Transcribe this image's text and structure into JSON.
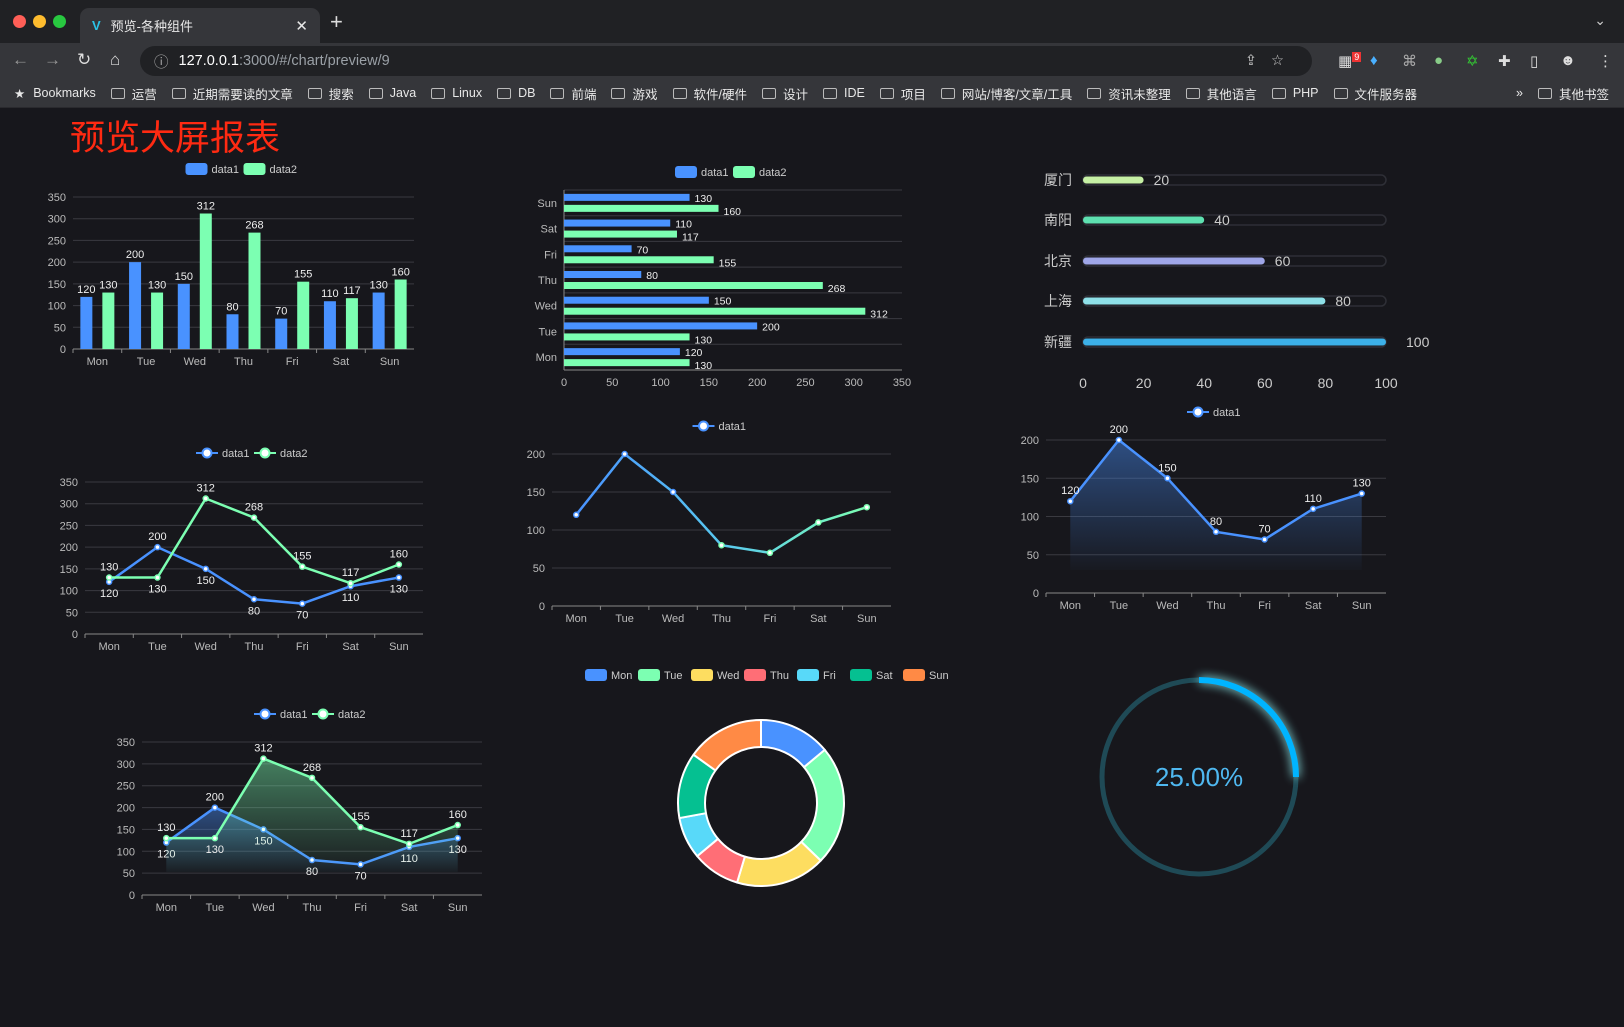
{
  "browser": {
    "tab_title": "预览-各种组件",
    "url_host": "127.0.0.1",
    "url_rest": ":3000/#/chart/preview/9",
    "ext_badge": "9",
    "bookmarks": [
      "Bookmarks",
      "运营",
      "近期需要读的文章",
      "搜索",
      "Java",
      "Linux",
      "DB",
      "前端",
      "游戏",
      "软件/硬件",
      "设计",
      "IDE",
      "项目",
      "网站/博客/文章/工具",
      "资讯未整理",
      "其他语言",
      "PHP",
      "文件服务器",
      "»",
      "其他书签"
    ]
  },
  "page": {
    "title": "预览大屏报表"
  },
  "colors": {
    "data1": "#4992ff",
    "data2": "#7cffb2",
    "pie": [
      "#4992ff",
      "#7cffb2",
      "#fddd60",
      "#ff6e76",
      "#58d9f9",
      "#05c091",
      "#ff8a45"
    ],
    "progress": [
      "#c6f0a4",
      "#5ee0b0",
      "#9fa6e8",
      "#8ee0e8",
      "#3cb0e8"
    ],
    "gauge": "#00b4ff",
    "gauge_track": "#1f4a56"
  },
  "chart_data": [
    {
      "type": "bar",
      "categories": [
        "Mon",
        "Tue",
        "Wed",
        "Thu",
        "Fri",
        "Sat",
        "Sun"
      ],
      "series": [
        {
          "name": "data1",
          "values": [
            120,
            200,
            150,
            80,
            70,
            110,
            130
          ]
        },
        {
          "name": "data2",
          "values": [
            130,
            130,
            312,
            268,
            155,
            117,
            160
          ]
        }
      ],
      "ylim": [
        0,
        350
      ],
      "yticks": [
        0,
        50,
        100,
        150,
        200,
        250,
        300,
        350
      ],
      "legend": "top",
      "grid": true
    },
    {
      "type": "bar",
      "orientation": "horizontal",
      "categories": [
        "Mon",
        "Tue",
        "Wed",
        "Thu",
        "Fri",
        "Sat",
        "Sun"
      ],
      "series": [
        {
          "name": "data1",
          "values": [
            120,
            200,
            150,
            80,
            70,
            110,
            130
          ]
        },
        {
          "name": "data2",
          "values": [
            130,
            130,
            312,
            268,
            155,
            117,
            160
          ]
        }
      ],
      "xlim": [
        0,
        350
      ],
      "xticks": [
        0,
        50,
        100,
        150,
        200,
        250,
        300,
        350
      ],
      "legend": "top",
      "grid": true
    },
    {
      "type": "bar",
      "orientation": "horizontal",
      "style": "progress",
      "categories": [
        "厦门",
        "南阳",
        "北京",
        "上海",
        "新疆"
      ],
      "values": [
        20,
        40,
        60,
        80,
        100
      ],
      "xlim": [
        0,
        100
      ],
      "xticks": [
        0,
        20,
        40,
        60,
        80,
        100
      ]
    },
    {
      "type": "line",
      "categories": [
        "Mon",
        "Tue",
        "Wed",
        "Thu",
        "Fri",
        "Sat",
        "Sun"
      ],
      "series": [
        {
          "name": "data1",
          "values": [
            120,
            200,
            150,
            80,
            70,
            110,
            130
          ]
        },
        {
          "name": "data2",
          "values": [
            130,
            130,
            312,
            268,
            155,
            117,
            160
          ]
        }
      ],
      "ylim": [
        0,
        350
      ],
      "yticks": [
        0,
        50,
        100,
        150,
        200,
        250,
        300,
        350
      ],
      "legend": "top",
      "grid": true
    },
    {
      "type": "line",
      "categories": [
        "Mon",
        "Tue",
        "Wed",
        "Thu",
        "Fri",
        "Sat",
        "Sun"
      ],
      "series": [
        {
          "name": "data1",
          "values": [
            120,
            200,
            150,
            80,
            70,
            110,
            130
          ]
        }
      ],
      "ylim": [
        0,
        200
      ],
      "yticks": [
        0,
        50,
        100,
        150,
        200
      ],
      "legend": "top",
      "grid": true
    },
    {
      "type": "area",
      "categories": [
        "Mon",
        "Tue",
        "Wed",
        "Thu",
        "Fri",
        "Sat",
        "Sun"
      ],
      "series": [
        {
          "name": "data1",
          "values": [
            120,
            200,
            150,
            80,
            70,
            110,
            130
          ]
        }
      ],
      "ylim": [
        0,
        200
      ],
      "yticks": [
        0,
        50,
        100,
        150,
        200
      ],
      "legend": "top",
      "grid": true
    },
    {
      "type": "area",
      "categories": [
        "Mon",
        "Tue",
        "Wed",
        "Thu",
        "Fri",
        "Sat",
        "Sun"
      ],
      "series": [
        {
          "name": "data1",
          "values": [
            120,
            200,
            150,
            80,
            70,
            110,
            130
          ]
        },
        {
          "name": "data2",
          "values": [
            130,
            130,
            312,
            268,
            155,
            117,
            160
          ]
        }
      ],
      "ylim": [
        0,
        350
      ],
      "yticks": [
        0,
        50,
        100,
        150,
        200,
        250,
        300,
        350
      ],
      "legend": "top",
      "grid": true
    },
    {
      "type": "pie",
      "style": "donut",
      "categories": [
        "Mon",
        "Tue",
        "Wed",
        "Thu",
        "Fri",
        "Sat",
        "Sun"
      ],
      "values": [
        120,
        200,
        150,
        80,
        70,
        110,
        130
      ],
      "legend": "top"
    },
    {
      "type": "gauge",
      "value": 25,
      "label": "25.00%"
    }
  ]
}
